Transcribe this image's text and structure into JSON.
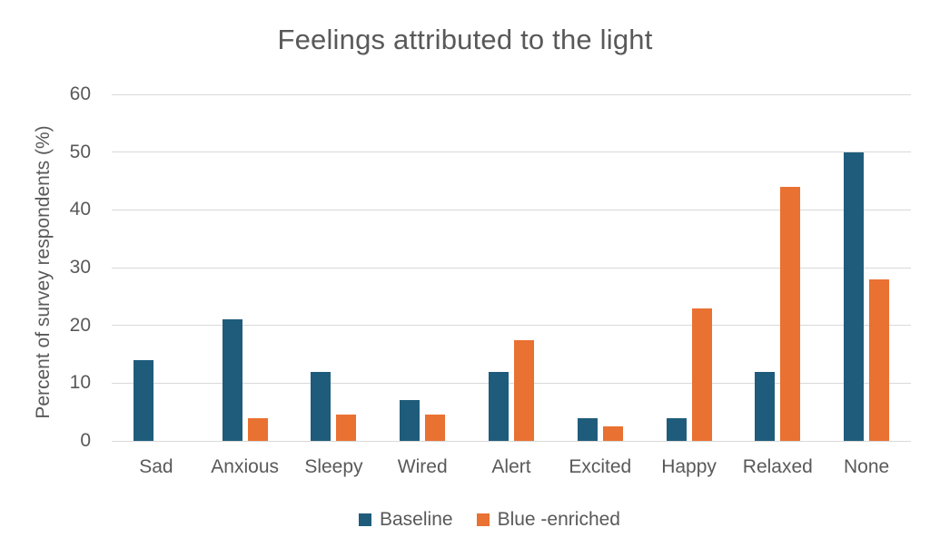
{
  "chart_data": {
    "type": "bar",
    "title": "Feelings attributed to the light",
    "xlabel": "",
    "ylabel": "Percent of survey respondents (%)",
    "categories": [
      "Sad",
      "Anxious",
      "Sleepy",
      "Wired",
      "Alert",
      "Excited",
      "Happy",
      "Relaxed",
      "None"
    ],
    "series": [
      {
        "name": "Baseline",
        "color": "#1F5C7B",
        "values": [
          14,
          21,
          12,
          7,
          12,
          4,
          4,
          12,
          50
        ]
      },
      {
        "name": "Blue -enriched",
        "color": "#E97132",
        "values": [
          0,
          4,
          4.5,
          4.5,
          17.5,
          2.5,
          23,
          44,
          28
        ]
      }
    ],
    "ylim": [
      0,
      60
    ],
    "yticks": [
      0,
      10,
      20,
      30,
      40,
      50,
      60
    ],
    "grid": true,
    "legend_position": "bottom"
  },
  "colors": {
    "text": "#595959",
    "gridline": "#D9D9D9",
    "background": "#FFFFFF"
  }
}
